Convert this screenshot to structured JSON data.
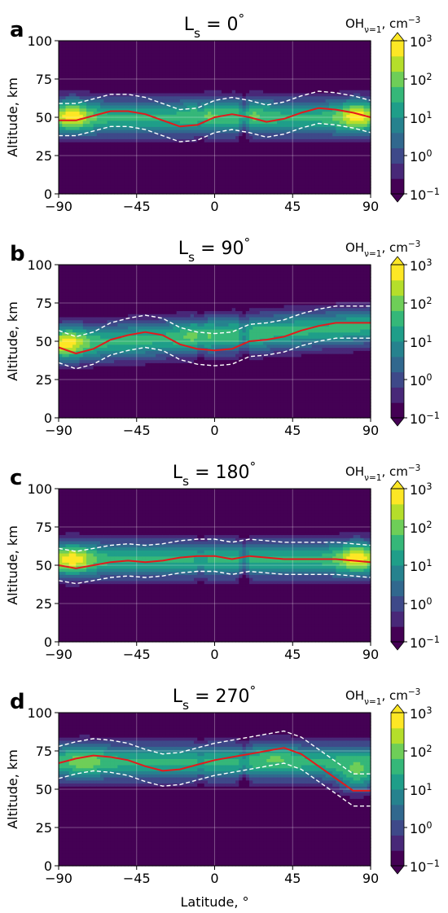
{
  "figure": {
    "xlabel": "Latitude, °",
    "ylabel": "Altitude, km",
    "colorbar_title": "OH<sub>ν=1</sub>, cm<sup>−3</sup>",
    "colorbar_ticks": [
      "10<sup>3</sup>",
      "10<sup>2</sup>",
      "10<sup>1</sup>",
      "10<sup>0</sup>",
      "10<sup>−1</sup>"
    ],
    "colormap": [
      "#440154",
      "#482878",
      "#3e4989",
      "#31688e",
      "#26828e",
      "#1f9e89",
      "#35b779",
      "#6ece58",
      "#b5de2b",
      "#fde725"
    ],
    "peak_line_color": "#e31a1c",
    "contour_color": "#ffffff"
  },
  "chart_data": [
    {
      "type": "heatmap",
      "panel": "a",
      "title": "L<sub>s</sub> = 0<sup>°</sup>",
      "x_ticks": [
        -90,
        -45,
        0,
        45,
        90
      ],
      "y_ticks": [
        0,
        25,
        50,
        75,
        100
      ],
      "xlim": [
        -90,
        90
      ],
      "ylim": [
        0,
        100
      ],
      "grid": true,
      "colorbar": {
        "scale": "log",
        "range": [
          0.1,
          1000
        ]
      },
      "peak_altitude_line": {
        "lat": [
          -90,
          -80,
          -70,
          -60,
          -50,
          -40,
          -30,
          -20,
          -10,
          0,
          10,
          20,
          30,
          40,
          50,
          60,
          70,
          80,
          90
        ],
        "alt": [
          48,
          48,
          51,
          54,
          54,
          52,
          48,
          44,
          45,
          50,
          52,
          50,
          47,
          49,
          53,
          56,
          55,
          53,
          50
        ]
      },
      "intensity_peaks": [
        {
          "lat": -82,
          "alt": 52,
          "log_value": 2.9
        },
        {
          "lat": 82,
          "alt": 52,
          "log_value": 2.9
        },
        {
          "lat": -5,
          "alt": 55,
          "log_value": 2.0
        },
        {
          "lat": 20,
          "alt": 55,
          "log_value": 2.0
        }
      ],
      "dips": [
        {
          "lat": 17,
          "depth": 0.8
        },
        {
          "lat": -8,
          "depth": 0.35
        }
      ],
      "layer": {
        "center": [
          50,
          50
        ],
        "width": 13,
        "peak_log": 1.5
      }
    },
    {
      "type": "heatmap",
      "panel": "b",
      "title": "L<sub>s</sub> = 90<sup>°</sup>",
      "x_ticks": [
        -90,
        -45,
        0,
        45,
        90
      ],
      "y_ticks": [
        0,
        25,
        50,
        75,
        100
      ],
      "xlim": [
        -90,
        90
      ],
      "ylim": [
        0,
        100
      ],
      "grid": true,
      "colorbar": {
        "scale": "log",
        "range": [
          0.1,
          1000
        ]
      },
      "peak_altitude_line": {
        "lat": [
          -90,
          -80,
          -70,
          -60,
          -50,
          -40,
          -30,
          -20,
          -10,
          0,
          10,
          20,
          30,
          40,
          50,
          60,
          70,
          80,
          90
        ],
        "alt": [
          46,
          42,
          45,
          51,
          54,
          56,
          54,
          48,
          45,
          44,
          45,
          50,
          51,
          53,
          57,
          60,
          62,
          62,
          62
        ]
      },
      "intensity_peaks": [
        {
          "lat": -85,
          "alt": 50,
          "log_value": 2.9
        },
        {
          "lat": -10,
          "alt": 55,
          "log_value": 2.0
        },
        {
          "lat": 18,
          "alt": 50,
          "log_value": 1.9
        }
      ],
      "dips": [
        {
          "lat": 17,
          "depth": 0.8
        },
        {
          "lat": -8,
          "depth": 0.4
        }
      ],
      "layer": {
        "center": [
          48,
          60
        ],
        "width": 13,
        "peak_log": 1.5
      }
    },
    {
      "type": "heatmap",
      "panel": "c",
      "title": "L<sub>s</sub> = 180<sup>°</sup>",
      "x_ticks": [
        -90,
        -45,
        0,
        45,
        90
      ],
      "y_ticks": [
        0,
        25,
        50,
        75,
        100
      ],
      "xlim": [
        -90,
        90
      ],
      "ylim": [
        0,
        100
      ],
      "grid": true,
      "colorbar": {
        "scale": "log",
        "range": [
          0.1,
          1000
        ]
      },
      "peak_altitude_line": {
        "lat": [
          -90,
          -80,
          -70,
          -60,
          -50,
          -40,
          -30,
          -20,
          -10,
          0,
          10,
          20,
          30,
          40,
          50,
          60,
          70,
          80,
          90
        ],
        "alt": [
          50,
          48,
          50,
          52,
          53,
          52,
          53,
          55,
          56,
          56,
          54,
          56,
          55,
          54,
          54,
          54,
          54,
          53,
          52
        ]
      },
      "intensity_peaks": [
        {
          "lat": -82,
          "alt": 54,
          "log_value": 2.9
        },
        {
          "lat": 82,
          "alt": 56,
          "log_value": 2.9
        }
      ],
      "dips": [
        {
          "lat": 17,
          "depth": 0.8
        },
        {
          "lat": -8,
          "depth": 0.35
        }
      ],
      "layer": {
        "center": [
          54,
          54
        ],
        "width": 13,
        "peak_log": 1.5
      }
    },
    {
      "type": "heatmap",
      "panel": "d",
      "title": "L<sub>s</sub> = 270<sup>°</sup>",
      "x_ticks": [
        -90,
        -45,
        0,
        45,
        90
      ],
      "y_ticks": [
        0,
        25,
        50,
        75,
        100
      ],
      "xlim": [
        -90,
        90
      ],
      "ylim": [
        0,
        100
      ],
      "grid": true,
      "colorbar": {
        "scale": "log",
        "range": [
          0.1,
          1000
        ]
      },
      "peak_altitude_line": {
        "lat": [
          -90,
          -80,
          -70,
          -60,
          -50,
          -40,
          -30,
          -20,
          -10,
          0,
          10,
          20,
          30,
          40,
          50,
          60,
          70,
          80,
          90
        ],
        "alt": [
          67,
          70,
          72,
          71,
          69,
          65,
          62,
          63,
          66,
          69,
          71,
          73,
          75,
          77,
          73,
          65,
          57,
          49,
          49
        ]
      },
      "intensity_peaks": [
        {
          "lat": 82,
          "alt": 55,
          "log_value": 2.9
        },
        {
          "lat": -75,
          "alt": 70,
          "log_value": 2.2
        },
        {
          "lat": 35,
          "alt": 74,
          "log_value": 2.0
        }
      ],
      "dips": [
        {
          "lat": 17,
          "depth": 0.8
        },
        {
          "lat": -8,
          "depth": 0.4
        }
      ],
      "layer": {
        "center": [
          68,
          68
        ],
        "width": 13,
        "peak_log": 1.5
      }
    }
  ]
}
